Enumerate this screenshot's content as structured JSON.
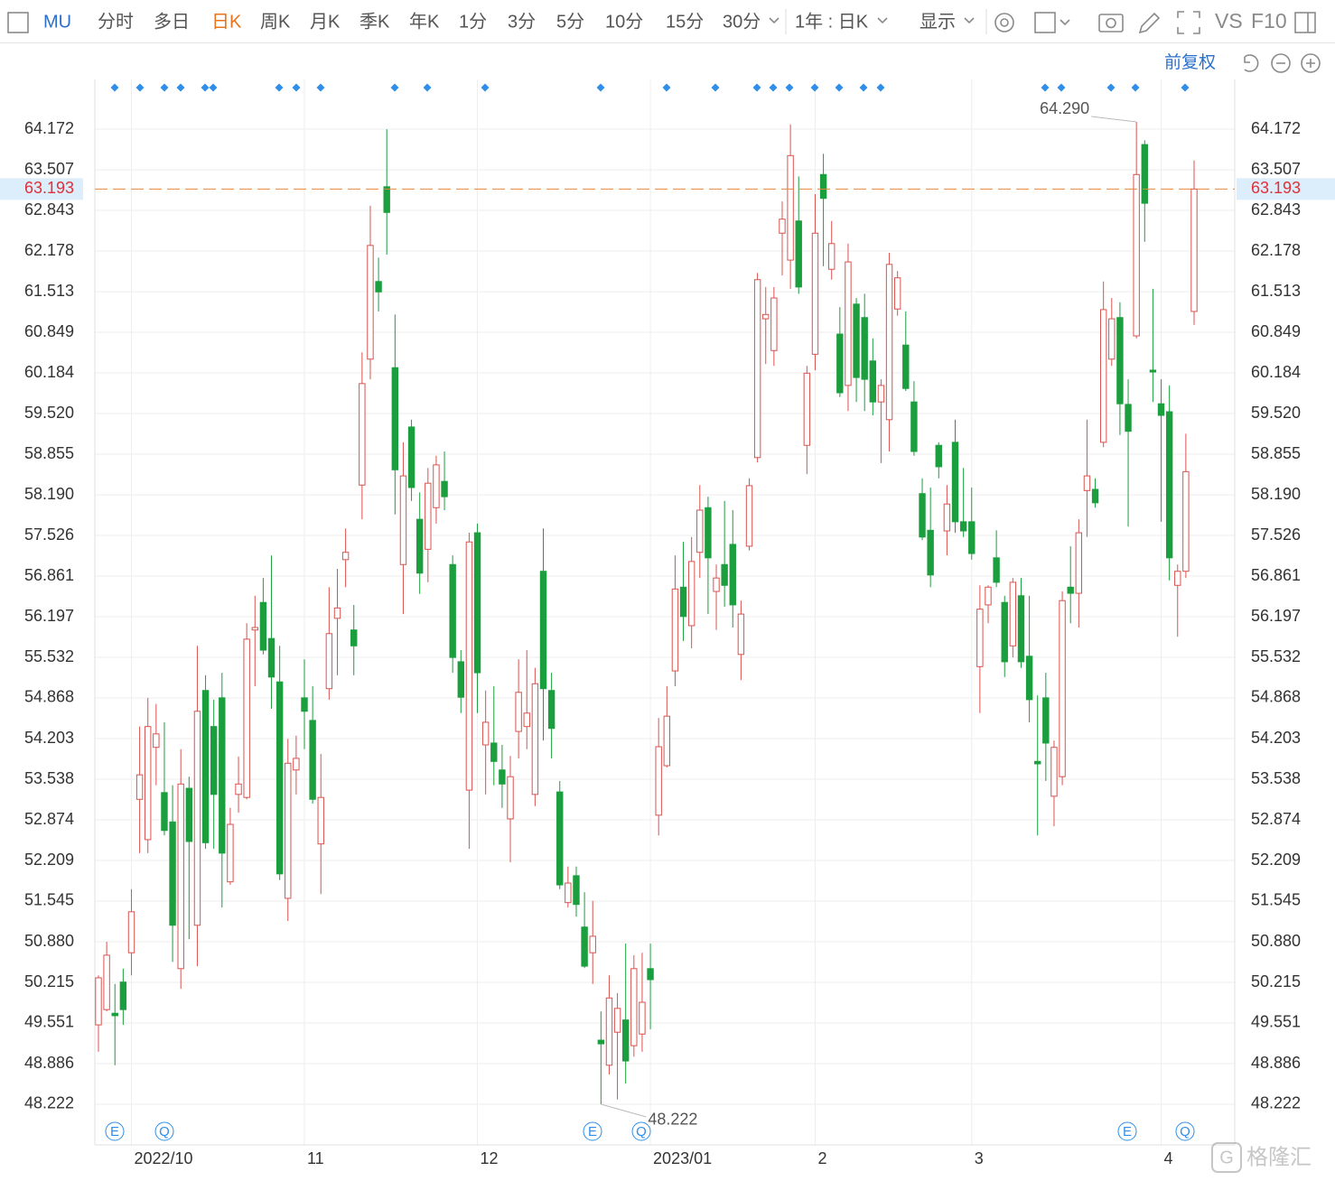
{
  "toolbar": {
    "symbol": "MU",
    "periods": [
      "分时",
      "多日",
      "日K",
      "周K",
      "月K",
      "季K",
      "年K",
      "1分",
      "3分",
      "5分",
      "10分",
      "15分",
      "30分"
    ],
    "range": "1年 : 日K",
    "display": "显示",
    "compare": "VS",
    "f10": "F10",
    "adjust": "前复权"
  },
  "events": [
    "E",
    "Q",
    "E",
    "Q",
    "E",
    "Q"
  ],
  "watermark": "格隆汇",
  "chart_data": {
    "type": "candlestick",
    "up_color": "#d9534f",
    "down_color": "#1b9e3e",
    "last_price_color": "#e8883a",
    "grid": true,
    "ylim": [
      47.557,
      64.985
    ],
    "yticks": [
      48.222,
      48.886,
      49.551,
      50.215,
      {
        "value": 50.88,
        "label": "50.880"
      },
      51.545,
      52.209,
      52.874,
      53.538,
      54.203,
      54.868,
      55.532,
      56.197,
      56.861,
      57.526,
      {
        "value": 58.19,
        "label": "58.190"
      },
      58.855,
      {
        "value": 59.52,
        "label": "59.520"
      },
      60.184,
      60.849,
      61.513,
      62.178,
      62.843,
      63.507,
      64.172
    ],
    "last_price": 63.193,
    "max_annotation": {
      "value": 64.29,
      "label": "64.290"
    },
    "min_annotation": 48.222,
    "categories": [
      null,
      null,
      null,
      null,
      "2022/10",
      null,
      null,
      null,
      null,
      null,
      null,
      null,
      null,
      null,
      null,
      null,
      null,
      null,
      null,
      null,
      null,
      null,
      null,
      null,
      null,
      "11",
      null,
      null,
      null,
      null,
      null,
      null,
      null,
      null,
      null,
      null,
      null,
      null,
      null,
      null,
      null,
      null,
      null,
      null,
      null,
      null,
      "12",
      null,
      null,
      null,
      null,
      null,
      null,
      null,
      null,
      null,
      null,
      null,
      null,
      null,
      null,
      null,
      null,
      null,
      null,
      null,
      null,
      "2023/01",
      null,
      null,
      null,
      null,
      null,
      null,
      null,
      null,
      null,
      null,
      null,
      null,
      null,
      null,
      null,
      null,
      null,
      null,
      null,
      "2",
      null,
      null,
      null,
      null,
      null,
      null,
      null,
      null,
      null,
      null,
      null,
      null,
      null,
      null,
      null,
      null,
      null,
      null,
      "3",
      null,
      null,
      null,
      null,
      null,
      null,
      null,
      null,
      null,
      null,
      null,
      null,
      null,
      null,
      null,
      null,
      null,
      null,
      null,
      null,
      null,
      null,
      "4",
      null,
      null,
      null,
      null
    ],
    "ohlc": [
      [
        49.52,
        50.33,
        49.08,
        50.29
      ],
      [
        49.77,
        50.88,
        49.74,
        50.66
      ],
      [
        49.71,
        50.19,
        48.86,
        49.67
      ],
      [
        50.22,
        50.44,
        49.52,
        49.77
      ],
      [
        50.7,
        51.74,
        50.33,
        51.37
      ],
      [
        53.21,
        54.4,
        52.33,
        53.61
      ],
      [
        52.55,
        54.87,
        52.33,
        54.4
      ],
      [
        54.06,
        54.77,
        53.44,
        54.28
      ],
      [
        53.32,
        54.47,
        52.62,
        52.7
      ],
      [
        52.84,
        53.44,
        50.55,
        51.15
      ],
      [
        50.44,
        54.03,
        50.11,
        53.46
      ],
      [
        53.39,
        53.58,
        50.92,
        52.52
      ],
      [
        51.15,
        55.72,
        50.48,
        54.65
      ],
      [
        54.99,
        55.24,
        52.4,
        52.5
      ],
      [
        54.4,
        54.84,
        52.4,
        53.29
      ],
      [
        54.87,
        55.28,
        51.44,
        52.33
      ],
      [
        51.86,
        53.07,
        51.81,
        52.8
      ],
      [
        53.29,
        53.91,
        52.99,
        53.46
      ],
      [
        53.24,
        56.09,
        53.21,
        55.83
      ],
      [
        55.98,
        56.54,
        55.06,
        56.02
      ],
      [
        56.43,
        56.83,
        55.58,
        55.65
      ],
      [
        55.84,
        57.2,
        54.69,
        55.21
      ],
      [
        55.13,
        55.72,
        51.89,
        51.99
      ],
      [
        51.59,
        54.2,
        51.22,
        53.8
      ],
      [
        53.69,
        54.25,
        53.29,
        53.88
      ],
      [
        54.87,
        55.5,
        54.03,
        54.65
      ],
      [
        54.5,
        55.06,
        53.14,
        53.21
      ],
      [
        52.48,
        53.95,
        51.66,
        53.24
      ],
      [
        55.02,
        56.68,
        54.84,
        55.92
      ],
      [
        56.17,
        56.98,
        55.24,
        56.34
      ],
      [
        57.13,
        57.64,
        56.68,
        57.25
      ],
      [
        55.98,
        56.39,
        55.24,
        55.72
      ],
      [
        58.35,
        60.52,
        57.79,
        60.01
      ],
      [
        60.41,
        62.92,
        60.08,
        62.27
      ],
      [
        61.68,
        62.07,
        61.19,
        61.51
      ],
      [
        63.23,
        64.17,
        62.12,
        62.81
      ],
      [
        60.27,
        61.14,
        57.87,
        58.6
      ],
      [
        57.05,
        59.05,
        56.24,
        58.5
      ],
      [
        59.3,
        59.42,
        58.09,
        58.31
      ],
      [
        57.79,
        58.23,
        56.57,
        56.91
      ],
      [
        57.3,
        58.63,
        56.76,
        58.38
      ],
      [
        57.98,
        58.83,
        57.72,
        58.68
      ],
      [
        58.41,
        58.9,
        57.94,
        58.16
      ],
      [
        57.05,
        57.2,
        55.28,
        55.53
      ],
      [
        55.46,
        55.65,
        54.62,
        54.88
      ],
      [
        53.36,
        57.57,
        52.4,
        57.42
      ],
      [
        57.57,
        57.72,
        54.62,
        55.28
      ],
      [
        54.1,
        54.99,
        53.29,
        54.47
      ],
      [
        54.13,
        55.06,
        53.44,
        53.83
      ],
      [
        53.69,
        54.1,
        53.07,
        53.46
      ],
      [
        52.89,
        53.92,
        52.18,
        53.58
      ],
      [
        54.32,
        55.5,
        53.88,
        54.96
      ],
      [
        54.4,
        55.65,
        54.03,
        54.62
      ],
      [
        53.29,
        55.36,
        53.1,
        55.1
      ],
      [
        56.94,
        57.64,
        54.17,
        55.02
      ],
      [
        54.99,
        55.28,
        53.88,
        54.37
      ],
      [
        53.33,
        53.51,
        51.74,
        51.81
      ],
      [
        51.52,
        52.11,
        51.44,
        51.84
      ],
      [
        51.96,
        52.11,
        51.29,
        51.49
      ],
      [
        51.12,
        51.69,
        50.45,
        50.48
      ],
      [
        50.7,
        51.55,
        50.19,
        50.97
      ],
      [
        49.27,
        49.74,
        48.222,
        49.21
      ],
      [
        48.86,
        50.33,
        48.71,
        49.96
      ],
      [
        49.4,
        50.04,
        48.3,
        49.79
      ],
      [
        49.6,
        50.85,
        48.56,
        48.93
      ],
      [
        49.18,
        50.66,
        49.0,
        50.44
      ],
      [
        49.37,
        50.7,
        49.08,
        49.89
      ],
      [
        50.44,
        50.85,
        49.45,
        50.26
      ],
      [
        52.95,
        54.54,
        52.62,
        54.07
      ],
      [
        53.76,
        55.06,
        53.73,
        54.57
      ],
      [
        55.31,
        57.2,
        55.06,
        56.65
      ],
      [
        56.68,
        57.42,
        55.8,
        56.2
      ],
      [
        56.05,
        57.5,
        55.68,
        57.1
      ],
      [
        57.25,
        58.35,
        56.83,
        57.94
      ],
      [
        57.98,
        58.16,
        56.24,
        57.16
      ],
      [
        56.61,
        57.05,
        55.98,
        56.83
      ],
      [
        57.05,
        58.09,
        56.36,
        56.71
      ],
      [
        57.38,
        57.94,
        56.02,
        56.39
      ],
      [
        55.58,
        56.46,
        55.16,
        56.24
      ],
      [
        57.35,
        58.46,
        57.28,
        58.34
      ],
      [
        58.8,
        61.82,
        58.72,
        61.71
      ],
      [
        61.07,
        61.59,
        60.33,
        61.14
      ],
      [
        60.55,
        61.59,
        60.3,
        61.41
      ],
      [
        62.47,
        62.99,
        61.78,
        62.7
      ],
      [
        62.03,
        64.25,
        61.56,
        63.74
      ],
      [
        62.67,
        63.4,
        61.48,
        61.59
      ],
      [
        59.0,
        60.3,
        58.53,
        60.18
      ],
      [
        60.49,
        63.11,
        60.23,
        62.47
      ],
      [
        63.43,
        63.77,
        61.93,
        63.04
      ],
      [
        61.88,
        62.67,
        61.71,
        62.3
      ],
      [
        60.82,
        61.26,
        59.79,
        59.86
      ],
      [
        59.98,
        62.3,
        59.56,
        62.0
      ],
      [
        61.31,
        61.41,
        59.71,
        60.11
      ],
      [
        61.09,
        61.48,
        59.56,
        60.08
      ],
      [
        60.38,
        60.75,
        59.49,
        59.71
      ],
      [
        59.71,
        60.08,
        58.71,
        59.98
      ],
      [
        59.42,
        62.15,
        58.9,
        61.96
      ],
      [
        61.23,
        61.85,
        61.12,
        61.74
      ],
      [
        60.64,
        61.19,
        59.89,
        59.93
      ],
      [
        59.71,
        60.05,
        58.83,
        58.9
      ],
      [
        58.21,
        58.46,
        57.45,
        57.5
      ],
      [
        57.61,
        58.31,
        56.68,
        56.88
      ],
      [
        59.0,
        59.05,
        58.46,
        58.65
      ],
      [
        57.6,
        58.35,
        57.2,
        58.04
      ],
      [
        59.05,
        59.42,
        57.57,
        57.75
      ],
      [
        57.75,
        58.63,
        57.5,
        57.6
      ],
      [
        57.75,
        58.31,
        57.13,
        57.23
      ],
      [
        55.38,
        56.71,
        54.62,
        56.32
      ],
      [
        56.39,
        56.71,
        56.09,
        56.68
      ],
      [
        57.16,
        57.61,
        56.68,
        56.76
      ],
      [
        56.43,
        56.54,
        55.21,
        55.46
      ],
      [
        55.72,
        56.83,
        55.53,
        56.76
      ],
      [
        56.54,
        56.83,
        55.36,
        55.46
      ],
      [
        55.55,
        56.54,
        54.47,
        54.84
      ],
      [
        53.83,
        54.91,
        52.62,
        53.79
      ],
      [
        54.87,
        55.28,
        53.51,
        54.13
      ],
      [
        53.26,
        54.17,
        52.77,
        54.06
      ],
      [
        53.58,
        56.61,
        53.44,
        56.46
      ],
      [
        56.68,
        57.35,
        56.09,
        56.58
      ],
      [
        56.58,
        57.79,
        56.02,
        57.57
      ],
      [
        58.26,
        59.42,
        57.5,
        58.5
      ],
      [
        58.28,
        58.46,
        57.98,
        58.06
      ],
      [
        59.05,
        61.68,
        58.97,
        61.22
      ],
      [
        60.41,
        61.41,
        60.3,
        61.07
      ],
      [
        61.09,
        61.34,
        59.17,
        59.68
      ],
      [
        59.67,
        60.08,
        57.67,
        59.23
      ],
      [
        60.79,
        64.29,
        60.75,
        63.43
      ],
      [
        63.92,
        63.99,
        62.33,
        62.96
      ],
      [
        60.23,
        61.56,
        59.71,
        60.2
      ],
      [
        59.68,
        60.08,
        57.75,
        59.49
      ],
      [
        59.55,
        59.98,
        56.79,
        57.16
      ],
      [
        56.71,
        57.05,
        55.87,
        56.94
      ],
      [
        56.94,
        59.19,
        56.83,
        58.57
      ],
      [
        61.19,
        63.66,
        60.97,
        63.193
      ]
    ]
  }
}
